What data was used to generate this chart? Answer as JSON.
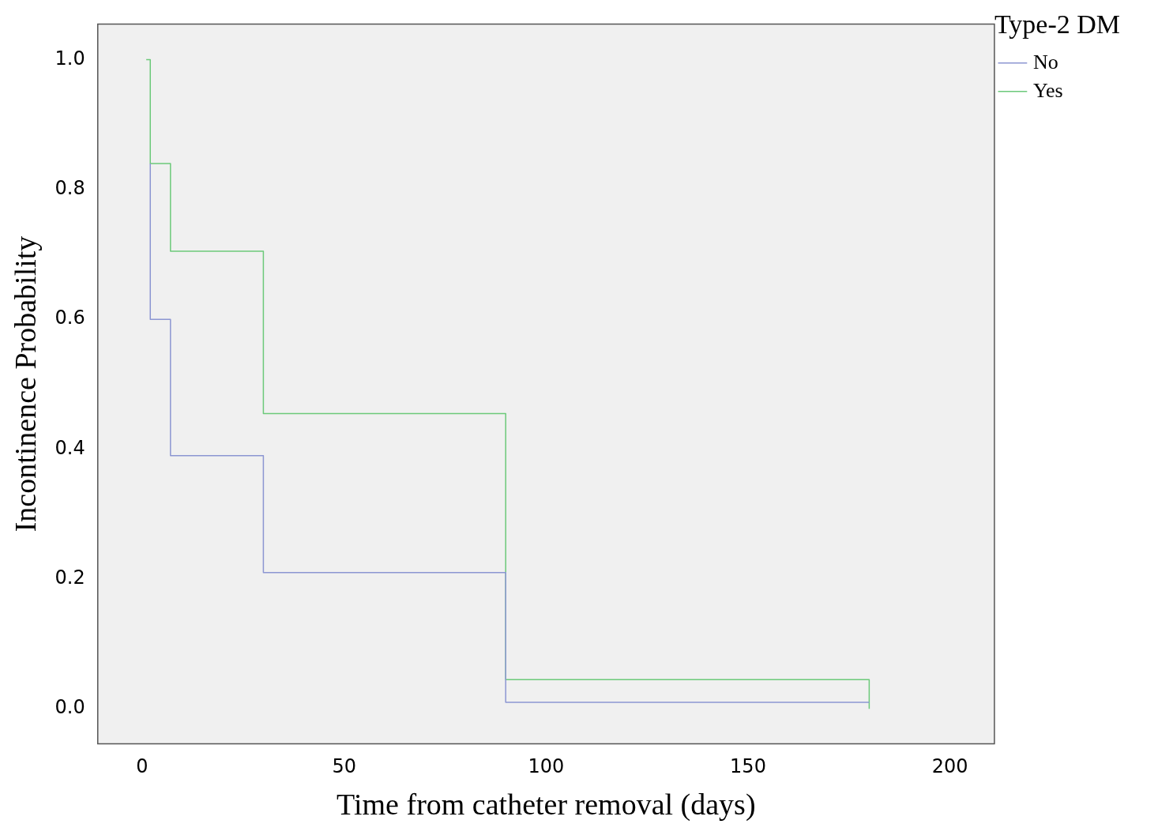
{
  "chart_data": {
    "type": "step",
    "xlabel": "Time from catheter removal (days)",
    "ylabel": "Incontinence Probability",
    "legend_title": "Type-2 DM",
    "legend": "top right",
    "grid": false,
    "marker": "none",
    "xlim": [
      -11,
      211
    ],
    "xticks": [
      0,
      50,
      100,
      150,
      200
    ],
    "ylim": [
      -0.054,
      1.055
    ],
    "yticks": [
      {
        "value": 0,
        "label": "0.0"
      },
      0.2,
      0.4,
      0.6,
      0.8,
      {
        "value": 1,
        "label": "1.0"
      }
    ],
    "series": [
      {
        "name": "No",
        "color": "#8c96d2",
        "x": [
          2,
          2,
          7,
          30,
          90,
          180
        ],
        "values": [
          0.84,
          0.6,
          0.39,
          0.21,
          0.01,
          0.01
        ]
      },
      {
        "name": "Yes",
        "color": "#6cc97a",
        "x": [
          1,
          2,
          7,
          30,
          90,
          180,
          180
        ],
        "values": [
          1,
          0.84,
          0.705,
          0.455,
          0.045,
          0.045,
          0
        ]
      }
    ]
  }
}
